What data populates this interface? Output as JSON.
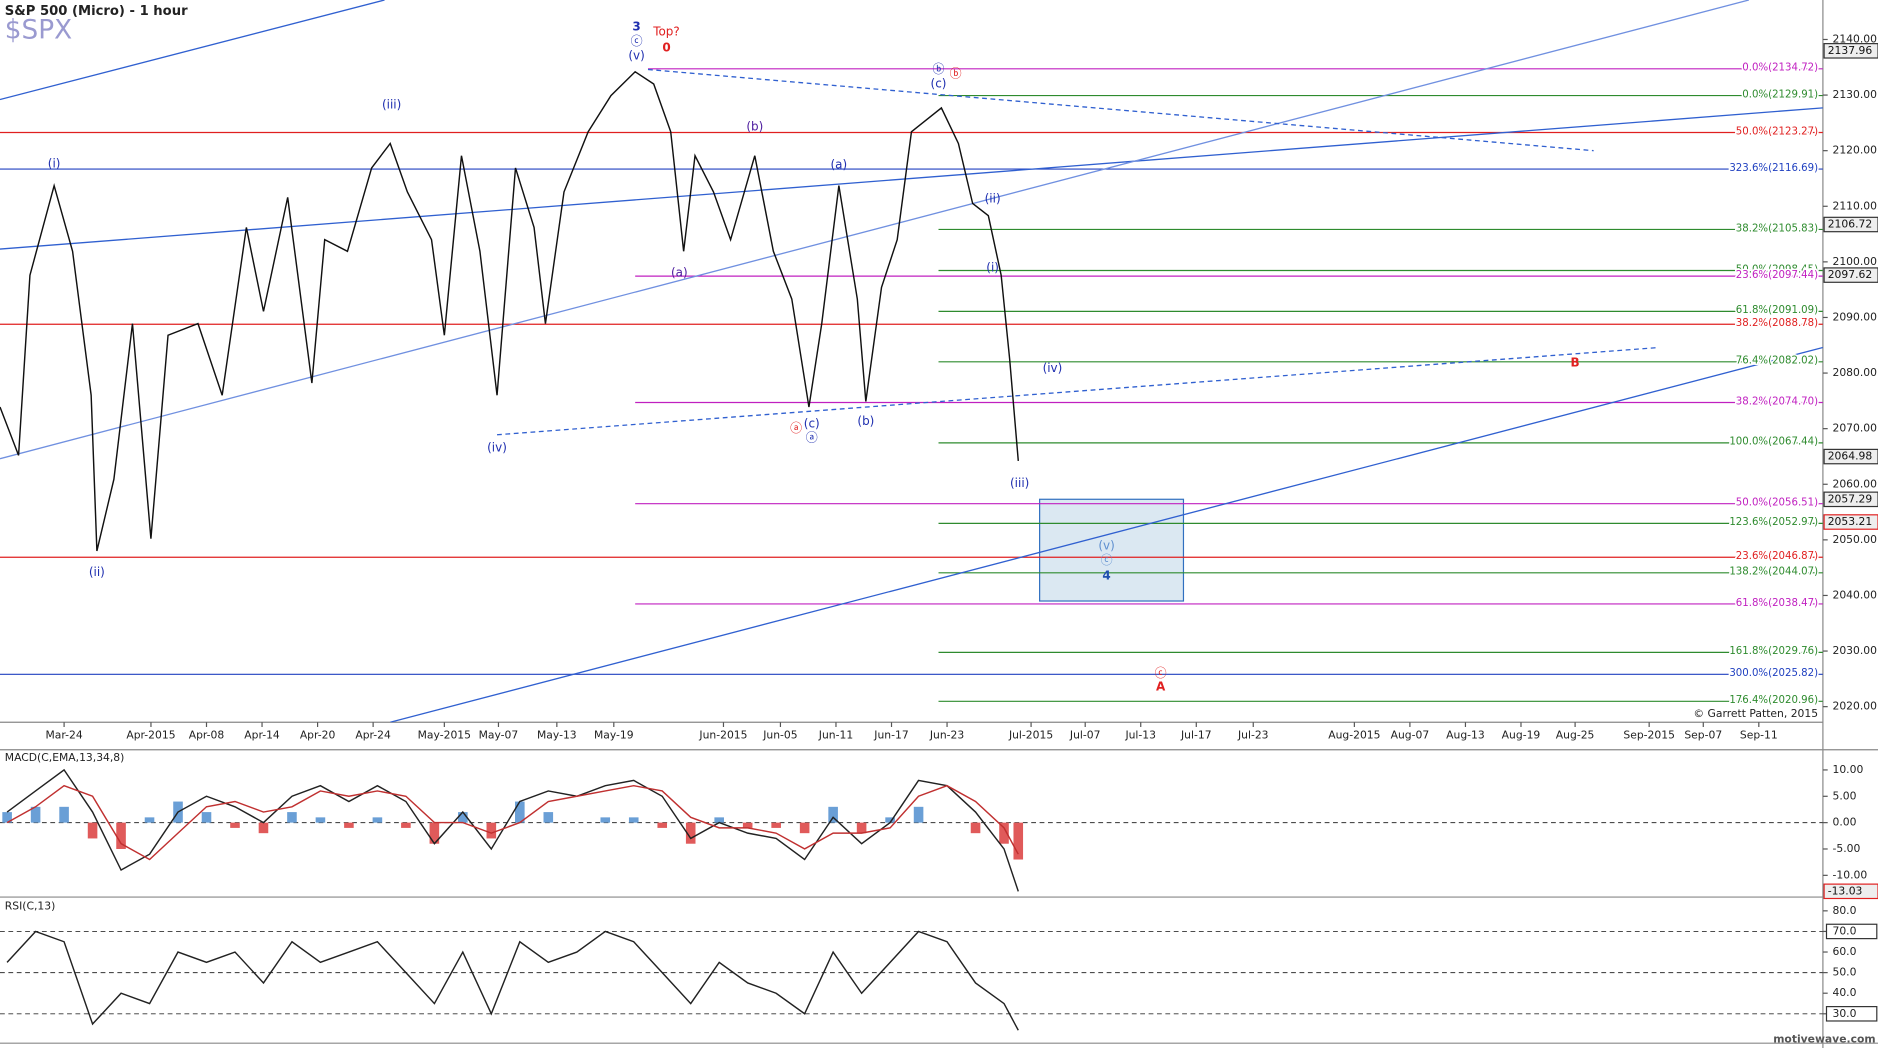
{
  "chart_data": [
    {
      "type": "line",
      "title": "S&P 500 (Micro) - 1 hour",
      "subtitle": "$SPX",
      "credit": "© Garrett Patten, 2015",
      "x": [
        -4.5,
        -3.2,
        -2.4,
        -0.7,
        0.6,
        1.9,
        2.3,
        3.5,
        4.8,
        6.1,
        7.3,
        9.4,
        11.1,
        12.8,
        14.0,
        15.7,
        17.4,
        18.3,
        19.9,
        21.6,
        22.9,
        24.1,
        25.8,
        26.7,
        27.9,
        29.2,
        30.4,
        31.7,
        33.0,
        33.8,
        35.1,
        36.8,
        38.4,
        40.1,
        41.4,
        42.6,
        43.5,
        44.3,
        45.6,
        46.8,
        48.5,
        49.8,
        51.1,
        52.3,
        53.2,
        54.4,
        55.7,
        56.3,
        57.4,
        58.5,
        59.5,
        61.6,
        62.8,
        63.8,
        64.9,
        65.8,
        66.4,
        67.0
      ],
      "series": [
        {
          "color": "#111111",
          "values": [
            2073.9,
            2065.2,
            2097.6,
            2113.7,
            2101.9,
            2076.0,
            2048.0,
            2060.9,
            2088.9,
            2050.2,
            2086.8,
            2088.9,
            2076.0,
            2106.2,
            2091.1,
            2111.6,
            2078.2,
            2104.0,
            2101.9,
            2116.9,
            2121.3,
            2112.6,
            2104.0,
            2086.8,
            2119.1,
            2101.9,
            2076.0,
            2116.9,
            2106.2,
            2088.9,
            2112.6,
            2123.4,
            2129.9,
            2134.2,
            2132.0,
            2123.4,
            2101.9,
            2119.1,
            2112.6,
            2104.0,
            2119.1,
            2101.9,
            2093.3,
            2073.9,
            2088.9,
            2113.7,
            2093.3,
            2074.9,
            2095.4,
            2104.0,
            2123.4,
            2127.7,
            2121.3,
            2110.5,
            2108.3,
            2097.6,
            2082.5,
            2064.2
          ]
        }
      ],
      "xlim": [
        -4.5,
        123.5
      ],
      "ylim": [
        2017.2,
        2147.1
      ],
      "xticks": [
        {
          "value": 0,
          "label": "Mar-24"
        },
        {
          "value": 6.1,
          "label": "Apr-2015"
        },
        {
          "value": 10.0,
          "label": "Apr-08"
        },
        {
          "value": 13.9,
          "label": "Apr-14"
        },
        {
          "value": 17.8,
          "label": "Apr-20"
        },
        {
          "value": 21.7,
          "label": "Apr-24"
        },
        {
          "value": 26.7,
          "label": "May-2015"
        },
        {
          "value": 30.5,
          "label": "May-07"
        },
        {
          "value": 34.6,
          "label": "May-13"
        },
        {
          "value": 38.6,
          "label": "May-19"
        },
        {
          "value": 46.3,
          "label": "Jun-2015"
        },
        {
          "value": 50.3,
          "label": "Jun-05"
        },
        {
          "value": 54.2,
          "label": "Jun-11"
        },
        {
          "value": 58.1,
          "label": "Jun-17"
        },
        {
          "value": 62.0,
          "label": "Jun-23"
        },
        {
          "value": 67.9,
          "label": "Jul-2015"
        },
        {
          "value": 71.7,
          "label": "Jul-07"
        },
        {
          "value": 75.6,
          "label": "Jul-13"
        },
        {
          "value": 79.5,
          "label": "Jul-17"
        },
        {
          "value": 83.5,
          "label": "Jul-23"
        },
        {
          "value": 90.6,
          "label": "Aug-2015"
        },
        {
          "value": 94.5,
          "label": "Aug-07"
        },
        {
          "value": 98.4,
          "label": "Aug-13"
        },
        {
          "value": 102.3,
          "label": "Aug-19"
        },
        {
          "value": 106.1,
          "label": "Aug-25"
        },
        {
          "value": 111.3,
          "label": "Sep-2015"
        },
        {
          "value": 115.1,
          "label": "Sep-07"
        },
        {
          "value": 119.0,
          "label": "Sep-11"
        }
      ],
      "yticks": [
        {
          "value": 2020,
          "label": "2020.00"
        },
        {
          "value": 2030,
          "label": "2030.00"
        },
        {
          "value": 2040,
          "label": "2040.00"
        },
        {
          "value": 2050,
          "label": "2050.00"
        },
        {
          "value": 2060,
          "label": "2060.00"
        },
        {
          "value": 2070,
          "label": "2070.00"
        },
        {
          "value": 2080,
          "label": "2080.00"
        },
        {
          "value": 2090,
          "label": "2090.00"
        },
        {
          "value": 2100,
          "label": "2100.00"
        },
        {
          "value": 2110,
          "label": "2110.00"
        },
        {
          "value": 2120,
          "label": "2120.00"
        },
        {
          "value": 2130,
          "label": "2130.00"
        },
        {
          "value": 2140,
          "label": "2140.00"
        }
      ],
      "levels": [
        {
          "value": 2134.72,
          "label": "0.0%(2134.72)",
          "color": "#c020c0",
          "start": 41.0
        },
        {
          "value": 2129.91,
          "label": "0.0%(2129.91)",
          "color": "#2e8b2e",
          "start": 61.4
        },
        {
          "value": 2123.27,
          "label": "50.0%(2123.27)",
          "color": "#e02020",
          "start": -4.5
        },
        {
          "value": 2116.69,
          "label": "323.6%(2116.69)",
          "color": "#2040c0",
          "start": -4.5
        },
        {
          "value": 2105.83,
          "label": "38.2%(2105.83)",
          "color": "#2e8b2e",
          "start": 61.4
        },
        {
          "value": 2098.45,
          "label": "50.0%(2098.45)",
          "color": "#2e8b2e",
          "start": 61.4
        },
        {
          "value": 2097.44,
          "label": "23.6%(2097.44)",
          "color": "#c020c0",
          "start": 40.1
        },
        {
          "value": 2091.09,
          "label": "61.8%(2091.09)",
          "color": "#2e8b2e",
          "start": 61.4
        },
        {
          "value": 2088.78,
          "label": "38.2%(2088.78)",
          "color": "#e02020",
          "start": -4.5
        },
        {
          "value": 2082.02,
          "label": "76.4%(2082.02)",
          "color": "#2e8b2e",
          "start": 61.4
        },
        {
          "value": 2074.7,
          "label": "38.2%(2074.70)",
          "color": "#c020c0",
          "start": 40.1
        },
        {
          "value": 2067.44,
          "label": "100.0%(2067.44)",
          "color": "#2e8b2e",
          "start": 61.4
        },
        {
          "value": 2056.51,
          "label": "50.0%(2056.51)",
          "color": "#c020c0",
          "start": 40.1
        },
        {
          "value": 2052.97,
          "label": "123.6%(2052.97)",
          "color": "#2e8b2e",
          "start": 61.4
        },
        {
          "value": 2046.87,
          "label": "23.6%(2046.87)",
          "color": "#e02020",
          "start": -4.5
        },
        {
          "value": 2044.07,
          "label": "138.2%(2044.07)",
          "color": "#2e8b2e",
          "start": 61.4
        },
        {
          "value": 2038.47,
          "label": "61.8%(2038.47)",
          "color": "#c020c0",
          "start": 40.1
        },
        {
          "value": 2029.76,
          "label": "161.8%(2029.76)",
          "color": "#2e8b2e",
          "start": 61.4
        },
        {
          "value": 2025.82,
          "label": "300.0%(2025.82)",
          "color": "#2040c0",
          "start": -4.5
        },
        {
          "value": 2020.96,
          "label": "176.4%(2020.96)",
          "color": "#2e8b2e",
          "start": 61.4
        }
      ],
      "price_markers": [
        {
          "value": 2137.96,
          "color": "#333333"
        },
        {
          "value": 2106.72,
          "color": "#333333"
        },
        {
          "value": 2097.62,
          "color": "#333333"
        },
        {
          "value": 2064.98,
          "color": "#333333"
        },
        {
          "value": 2057.29,
          "color": "#333333"
        },
        {
          "value": 2053.21,
          "color": "#e02020"
        }
      ],
      "trendlines": [
        {
          "x": [
            -4.5,
            22.5
          ],
          "y": [
            2129.2,
            2147.1
          ],
          "color": "#3060d0",
          "dashed": false
        },
        {
          "x": [
            -4.5,
            123.5
          ],
          "y": [
            2102.3,
            2127.7
          ],
          "color": "#3060d0",
          "dashed": false
        },
        {
          "x": [
            -4.5,
            118.3
          ],
          "y": [
            2064.6,
            2147.1
          ],
          "color": "#7090e0",
          "dashed": false
        },
        {
          "x": [
            22.9,
            123.5
          ],
          "y": [
            2017.2,
            2084.6
          ],
          "color": "#3060d0",
          "dashed": false
        },
        {
          "x": [
            30.4,
            112.0
          ],
          "y": [
            2068.9,
            2084.6
          ],
          "color": "#3060d0",
          "dashed": true
        },
        {
          "x": [
            41.0,
            107.4
          ],
          "y": [
            2134.6,
            2120.0
          ],
          "color": "#3060d0",
          "dashed": true
        }
      ],
      "zone": {
        "x": [
          68.5,
          78.6
        ],
        "y": [
          2039.0,
          2057.3
        ],
        "color": "#3070c0"
      },
      "annotations": [
        {
          "text": "(i)",
          "x": -0.7,
          "y": 2117.6,
          "color": "#2030b0"
        },
        {
          "text": "(ii)",
          "x": 2.3,
          "y": 2044.1,
          "color": "#2030b0"
        },
        {
          "text": "(iii)",
          "x": 23.0,
          "y": 2128.2,
          "color": "#2030b0"
        },
        {
          "text": "(iv)",
          "x": 30.4,
          "y": 2066.5,
          "color": "#2030b0"
        },
        {
          "text": "3",
          "x": 40.2,
          "y": 2142.2,
          "color": "#2030b0"
        },
        {
          "text": "ⓒ",
          "x": 40.2,
          "y": 2139.6,
          "color": "#2030b0"
        },
        {
          "text": "(v)",
          "x": 40.2,
          "y": 2137.0,
          "color": "#2030b0"
        },
        {
          "text": "Top?",
          "x": 42.3,
          "y": 2141.3,
          "color": "#e02020"
        },
        {
          "text": "0",
          "x": 42.3,
          "y": 2138.5,
          "color": "#e02020"
        },
        {
          "text": "(a)",
          "x": 43.2,
          "y": 2098.0,
          "color": "#5020a0"
        },
        {
          "text": "(b)",
          "x": 48.5,
          "y": 2124.3,
          "color": "#5020a0"
        },
        {
          "text": "(a)",
          "x": 54.4,
          "y": 2117.4,
          "color": "#2030b0"
        },
        {
          "text": "ⓐ",
          "x": 51.4,
          "y": 2070.0,
          "color": "#e02020"
        },
        {
          "text": "(c)",
          "x": 52.5,
          "y": 2070.8,
          "color": "#2030b0"
        },
        {
          "text": "ⓐ",
          "x": 52.5,
          "y": 2068.3,
          "color": "#2030b0"
        },
        {
          "text": "(b)",
          "x": 56.3,
          "y": 2071.3,
          "color": "#2030b0"
        },
        {
          "text": "ⓑ",
          "x": 61.4,
          "y": 2134.6,
          "color": "#2030b0"
        },
        {
          "text": "ⓑ",
          "x": 62.6,
          "y": 2133.8,
          "color": "#e02020"
        },
        {
          "text": "(c)",
          "x": 61.4,
          "y": 2132.0,
          "color": "#2030b0"
        },
        {
          "text": "(ii)",
          "x": 65.2,
          "y": 2111.3,
          "color": "#2030b0"
        },
        {
          "text": "(i)",
          "x": 65.2,
          "y": 2098.9,
          "color": "#2030b0"
        },
        {
          "text": "(iv)",
          "x": 69.4,
          "y": 2080.8,
          "color": "#2030b0"
        },
        {
          "text": "(iii)",
          "x": 67.1,
          "y": 2060.1,
          "color": "#2030b0"
        },
        {
          "text": "(v)",
          "x": 73.2,
          "y": 2048.9,
          "color": "#6090d0"
        },
        {
          "text": "ⓒ",
          "x": 73.2,
          "y": 2046.3,
          "color": "#6090d0"
        },
        {
          "text": "4",
          "x": 73.2,
          "y": 2043.5,
          "color": "#2050b0"
        },
        {
          "text": "ⓒ",
          "x": 77.0,
          "y": 2026.0,
          "color": "#e02020"
        },
        {
          "text": "A",
          "x": 77.0,
          "y": 2023.5,
          "color": "#e02020"
        },
        {
          "text": "B",
          "x": 106.1,
          "y": 2081.8,
          "color": "#e02020"
        }
      ]
    },
    {
      "type": "macd",
      "title": "MACD(C,EMA,13,34,8)",
      "x": [
        -4,
        -2,
        0,
        2,
        4,
        6,
        8,
        10,
        12,
        14,
        16,
        18,
        20,
        22,
        24,
        26,
        28,
        30,
        32,
        34,
        36,
        38,
        40,
        42,
        44,
        46,
        48,
        50,
        52,
        54,
        56,
        58,
        60,
        62,
        64,
        66,
        67
      ],
      "xlim": [
        -4.5,
        123.5
      ],
      "ylim": [
        -13.9,
        13.6
      ],
      "yticks": [
        {
          "value": 10,
          "label": "10.00"
        },
        {
          "value": 5,
          "label": "5.00"
        },
        {
          "value": 0,
          "label": "0.00"
        },
        {
          "value": -5,
          "label": "-5.00"
        },
        {
          "value": -10,
          "label": "-10.00"
        }
      ],
      "ref_lines": [
        0
      ],
      "histogram": {
        "up_color": "#6a9fd6",
        "down_color": "#e05a5a",
        "values": [
          2,
          3,
          3,
          -3,
          -5,
          1,
          4,
          2,
          -1,
          -2,
          2,
          1,
          -1,
          1,
          -1,
          -4,
          2,
          -3,
          4,
          2,
          0,
          1,
          1,
          -1,
          -4,
          1,
          -1,
          -1,
          -2,
          3,
          -2,
          1,
          3,
          0,
          -2,
          -4,
          -7
        ]
      },
      "series": [
        {
          "color": "#222222",
          "values": [
            2,
            6,
            10,
            2,
            -9,
            -6,
            2,
            5,
            3,
            0,
            5,
            7,
            4,
            7,
            4,
            -4,
            2,
            -5,
            4,
            6,
            5,
            7,
            8,
            5,
            -3,
            0,
            -2,
            -3,
            -7,
            1,
            -4,
            0,
            8,
            7,
            2,
            -5,
            -13.03
          ]
        },
        {
          "color": "#c03030",
          "values": [
            0,
            3,
            7,
            5,
            -4,
            -7,
            -2,
            3,
            4,
            2,
            3,
            6,
            5,
            6,
            5,
            0,
            0,
            -2,
            0,
            4,
            5,
            6,
            7,
            6,
            1,
            -1,
            -1,
            -2,
            -5,
            -2,
            -2,
            -1,
            5,
            7,
            4,
            -1,
            -6
          ]
        }
      ],
      "price_markers": [
        {
          "value": -13.03,
          "color": "#e02020"
        }
      ]
    },
    {
      "type": "rsi",
      "title": "RSI(C,13)",
      "x": [
        -4,
        -2,
        0,
        2,
        4,
        6,
        8,
        10,
        12,
        14,
        16,
        18,
        20,
        22,
        24,
        26,
        28,
        30,
        32,
        34,
        36,
        38,
        40,
        42,
        44,
        46,
        48,
        50,
        52,
        54,
        56,
        58,
        60,
        62,
        64,
        66,
        67
      ],
      "xlim": [
        -4.5,
        123.5
      ],
      "ylim": [
        16.3,
        86.1
      ],
      "yticks": [
        {
          "value": 80,
          "label": "80.0"
        },
        {
          "value": 70,
          "label": "70.0"
        },
        {
          "value": 60,
          "label": "60.0"
        },
        {
          "value": 50,
          "label": "50.0"
        },
        {
          "value": 40,
          "label": "40.0"
        },
        {
          "value": 30,
          "label": "30.0"
        }
      ],
      "ref_lines": [
        70,
        50,
        30
      ],
      "boxed": [
        70,
        30
      ],
      "series": [
        {
          "color": "#222222",
          "values": [
            55,
            70,
            65,
            25,
            40,
            35,
            60,
            55,
            60,
            45,
            65,
            55,
            60,
            65,
            50,
            35,
            60,
            30,
            65,
            55,
            60,
            70,
            65,
            50,
            35,
            55,
            45,
            40,
            30,
            60,
            40,
            55,
            70,
            65,
            45,
            35,
            22
          ]
        }
      ]
    }
  ],
  "footer": "motivewave.com"
}
